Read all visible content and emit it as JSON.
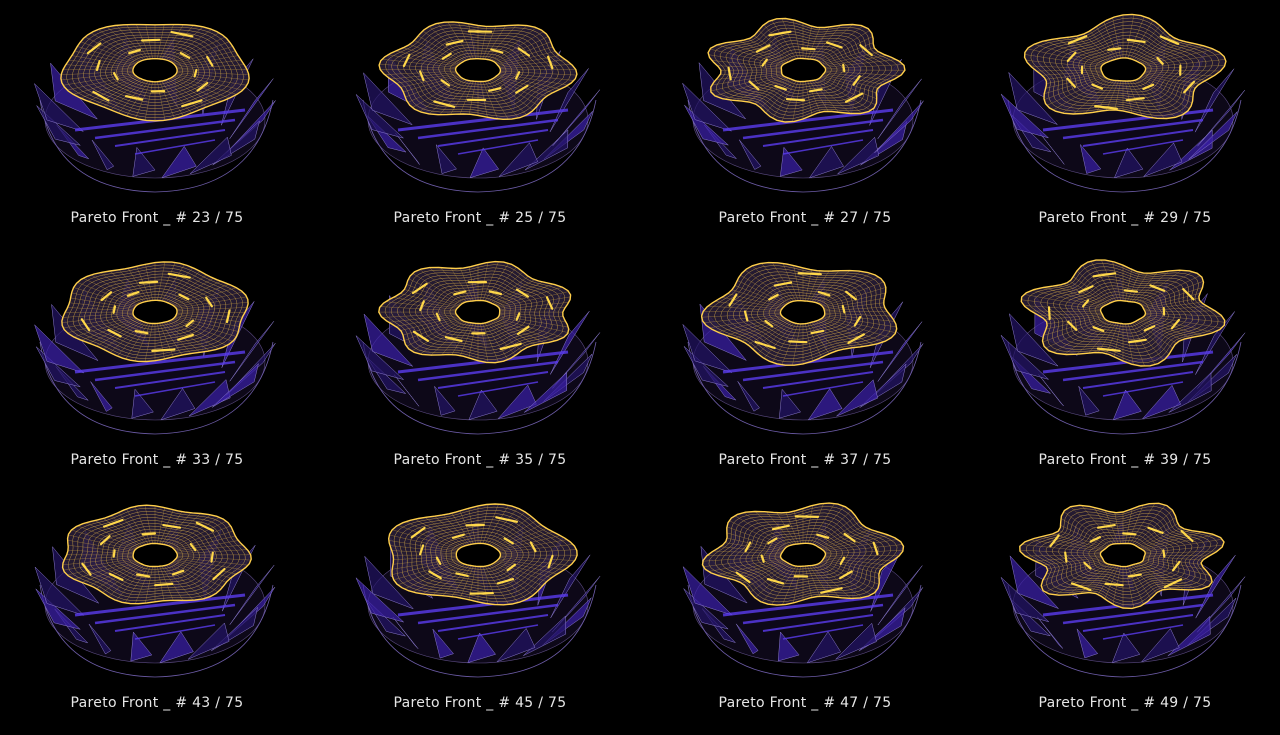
{
  "panels": [
    {
      "label": "Pareto Front _ # 23 / 75"
    },
    {
      "label": "Pareto Front _ # 25 / 75"
    },
    {
      "label": "Pareto Front _ # 27 / 75"
    },
    {
      "label": "Pareto Front _ # 29 / 75"
    },
    {
      "label": "Pareto Front _ # 33 / 75"
    },
    {
      "label": "Pareto Front _ # 35 / 75"
    },
    {
      "label": "Pareto Front _ # 37 / 75"
    },
    {
      "label": "Pareto Front _ # 39 / 75"
    },
    {
      "label": "Pareto Front _ # 43 / 75"
    },
    {
      "label": "Pareto Front _ # 45 / 75"
    },
    {
      "label": "Pareto Front _ # 47 / 75"
    },
    {
      "label": "Pareto Front _ # 49 / 75"
    }
  ]
}
